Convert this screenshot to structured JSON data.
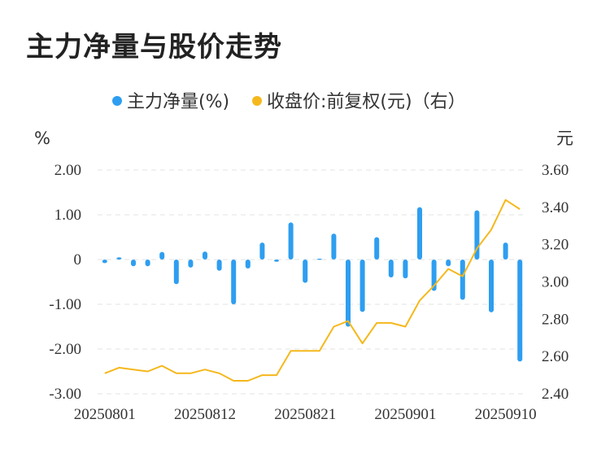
{
  "title": "主力净量与股价走势",
  "legend": {
    "bar_label": "主力净量(%)",
    "line_label": "收盘价:前复权(元)（右）",
    "bar_color": "#2e9ef0",
    "line_color": "#f5b81c"
  },
  "axes": {
    "left_unit": "%",
    "right_unit": "元",
    "left_ticks": [
      "2.00",
      "1.00",
      "0",
      "-1.00",
      "-2.00",
      "-3.00"
    ],
    "right_ticks": [
      "3.60",
      "3.40",
      "3.20",
      "3.00",
      "2.80",
      "2.60",
      "2.40"
    ],
    "x_ticks": [
      "20250801",
      "20250812",
      "20250821",
      "20250901",
      "20250910"
    ]
  },
  "chart_data": {
    "type": "bar",
    "categories": [
      "20250801",
      "20250804",
      "20250805",
      "20250806",
      "20250807",
      "20250808",
      "20250811",
      "20250812",
      "20250813",
      "20250814",
      "20250815",
      "20250818",
      "20250819",
      "20250820",
      "20250821",
      "20250822",
      "20250825",
      "20250826",
      "20250827",
      "20250828",
      "20250829",
      "20250901",
      "20250902",
      "20250903",
      "20250904",
      "20250905",
      "20250908",
      "20250909",
      "20250910",
      "20250911"
    ],
    "series": [
      {
        "name": "主力净量(%)",
        "axis": "left",
        "type": "bar",
        "values": [
          -0.08,
          0.05,
          -0.15,
          -0.15,
          0.17,
          -0.55,
          -0.18,
          0.18,
          -0.25,
          -1.0,
          -0.2,
          0.38,
          -0.05,
          0.83,
          -0.52,
          0.02,
          0.58,
          -1.5,
          -1.17,
          0.5,
          -0.4,
          -0.42,
          1.17,
          -0.7,
          -0.15,
          -0.9,
          1.1,
          -1.18,
          0.38,
          -2.28
        ]
      },
      {
        "name": "收盘价:前复权(元)（右）",
        "axis": "right",
        "type": "line",
        "values": [
          2.51,
          2.54,
          2.53,
          2.52,
          2.55,
          2.51,
          2.51,
          2.53,
          2.51,
          2.47,
          2.47,
          2.5,
          2.5,
          2.63,
          2.63,
          2.63,
          2.76,
          2.79,
          2.67,
          2.78,
          2.78,
          2.76,
          2.9,
          2.98,
          3.07,
          3.03,
          3.18,
          3.28,
          3.44,
          3.39
        ]
      }
    ],
    "y_left_lim": [
      -3.0,
      2.0
    ],
    "y_right_lim": [
      2.4,
      3.6
    ],
    "grid": true,
    "legend_position": "top-center"
  }
}
